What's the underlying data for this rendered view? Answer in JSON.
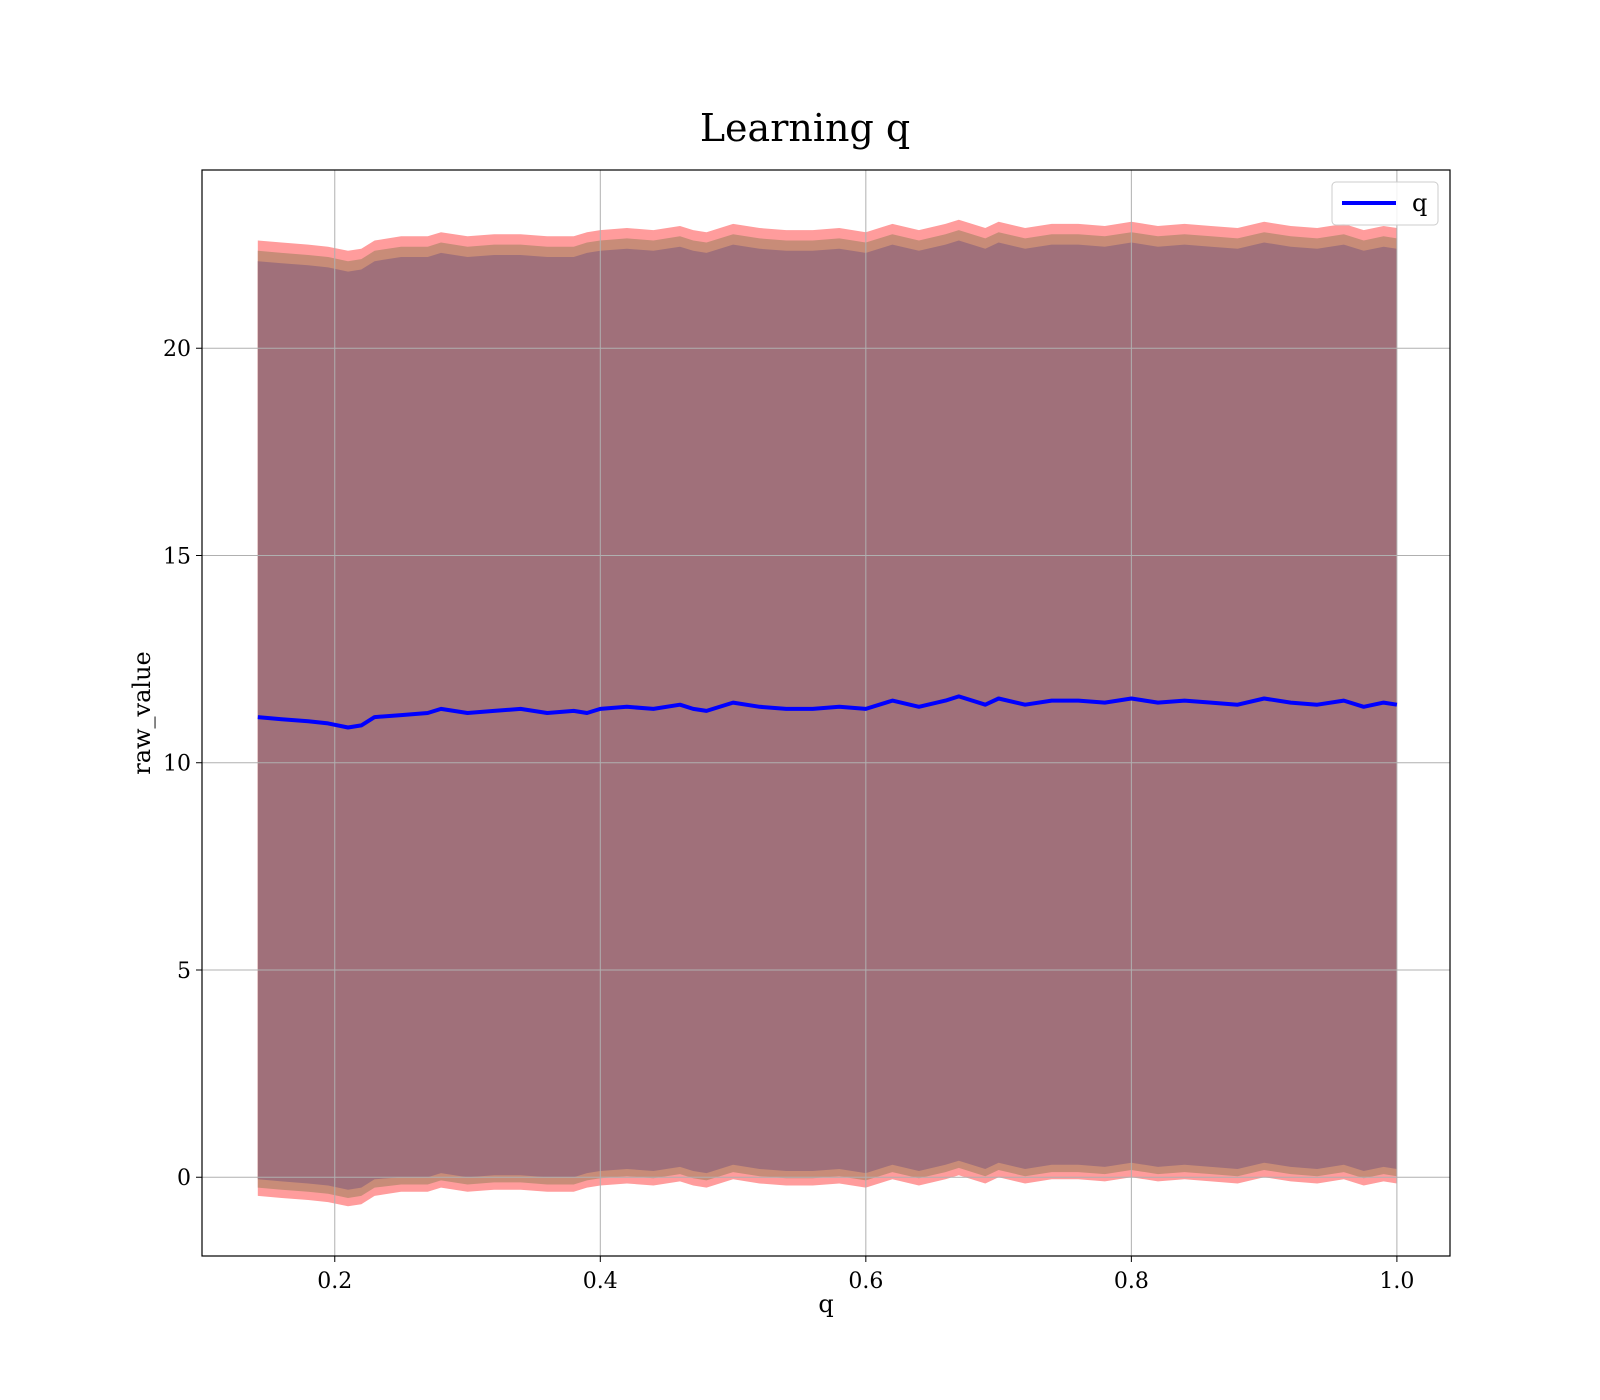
{
  "chart_data": {
    "type": "line",
    "title": "Learning q",
    "xlabel": "q",
    "ylabel": "raw_value",
    "xlim": [
      0.1,
      1.04
    ],
    "ylim": [
      -1.9,
      24.3
    ],
    "xticks": [
      0.2,
      0.4,
      0.6,
      0.8,
      1.0
    ],
    "xtick_labels": [
      "0.2",
      "0.4",
      "0.6",
      "0.8",
      "1.0"
    ],
    "yticks": [
      0,
      5,
      10,
      15,
      20
    ],
    "ytick_labels": [
      "0",
      "5",
      "10",
      "15",
      "20"
    ],
    "grid": true,
    "legend": {
      "position": "top-right",
      "entries": [
        "q"
      ]
    },
    "colors": {
      "line": "#0000ff",
      "outer_band": "#ff9c9c",
      "mid_band": "#c88c78",
      "inner_band": "#a0707a",
      "grid": "#b0b0b0"
    },
    "series": [
      {
        "name": "q",
        "x": [
          0.142,
          0.16,
          0.18,
          0.195,
          0.21,
          0.22,
          0.23,
          0.25,
          0.27,
          0.28,
          0.3,
          0.32,
          0.34,
          0.36,
          0.38,
          0.39,
          0.4,
          0.42,
          0.44,
          0.46,
          0.47,
          0.48,
          0.5,
          0.52,
          0.54,
          0.56,
          0.58,
          0.6,
          0.62,
          0.64,
          0.66,
          0.67,
          0.69,
          0.7,
          0.72,
          0.74,
          0.76,
          0.78,
          0.8,
          0.82,
          0.84,
          0.86,
          0.88,
          0.9,
          0.92,
          0.94,
          0.96,
          0.975,
          0.99,
          1.0
        ],
        "y": [
          11.1,
          11.05,
          11.0,
          10.95,
          10.85,
          10.9,
          11.1,
          11.15,
          11.2,
          11.3,
          11.2,
          11.25,
          11.3,
          11.2,
          11.25,
          11.2,
          11.3,
          11.35,
          11.3,
          11.4,
          11.3,
          11.25,
          11.45,
          11.35,
          11.3,
          11.3,
          11.35,
          11.3,
          11.5,
          11.35,
          11.5,
          11.6,
          11.4,
          11.55,
          11.4,
          11.5,
          11.5,
          11.45,
          11.55,
          11.45,
          11.5,
          11.45,
          11.4,
          11.55,
          11.45,
          11.4,
          11.5,
          11.35,
          11.45,
          11.4
        ],
        "upper_outer": [
          22.6,
          22.55,
          22.5,
          22.45,
          22.35,
          22.4,
          22.6,
          22.7,
          22.7,
          22.8,
          22.7,
          22.75,
          22.75,
          22.7,
          22.7,
          22.8,
          22.85,
          22.9,
          22.85,
          22.95,
          22.85,
          22.8,
          23.0,
          22.9,
          22.85,
          22.85,
          22.9,
          22.8,
          23.0,
          22.85,
          23.0,
          23.1,
          22.9,
          23.05,
          22.9,
          23.0,
          23.0,
          22.95,
          23.05,
          22.95,
          23.0,
          22.95,
          22.9,
          23.05,
          22.95,
          22.9,
          23.0,
          22.85,
          22.95,
          22.9
        ],
        "upper_inner": [
          22.1,
          22.05,
          22.0,
          21.95,
          21.85,
          21.9,
          22.1,
          22.2,
          22.2,
          22.3,
          22.2,
          22.25,
          22.25,
          22.2,
          22.2,
          22.3,
          22.35,
          22.4,
          22.35,
          22.45,
          22.35,
          22.3,
          22.5,
          22.4,
          22.35,
          22.35,
          22.4,
          22.3,
          22.5,
          22.35,
          22.5,
          22.6,
          22.4,
          22.55,
          22.4,
          22.5,
          22.5,
          22.45,
          22.55,
          22.45,
          22.5,
          22.45,
          22.4,
          22.55,
          22.45,
          22.4,
          22.5,
          22.35,
          22.45,
          22.4
        ],
        "lower_inner": [
          -0.05,
          -0.1,
          -0.15,
          -0.2,
          -0.3,
          -0.25,
          -0.05,
          0.0,
          0.0,
          0.1,
          0.0,
          0.05,
          0.05,
          0.0,
          0.0,
          0.1,
          0.15,
          0.2,
          0.15,
          0.25,
          0.15,
          0.1,
          0.3,
          0.2,
          0.15,
          0.15,
          0.2,
          0.1,
          0.3,
          0.15,
          0.3,
          0.4,
          0.2,
          0.35,
          0.2,
          0.3,
          0.3,
          0.25,
          0.35,
          0.25,
          0.3,
          0.25,
          0.2,
          0.35,
          0.25,
          0.2,
          0.3,
          0.15,
          0.25,
          0.2
        ],
        "lower_outer": [
          -0.45,
          -0.5,
          -0.55,
          -0.6,
          -0.7,
          -0.65,
          -0.45,
          -0.35,
          -0.35,
          -0.25,
          -0.35,
          -0.3,
          -0.3,
          -0.35,
          -0.35,
          -0.25,
          -0.2,
          -0.15,
          -0.2,
          -0.1,
          -0.2,
          -0.25,
          -0.05,
          -0.15,
          -0.2,
          -0.2,
          -0.15,
          -0.25,
          -0.05,
          -0.2,
          -0.05,
          0.05,
          -0.15,
          0.0,
          -0.15,
          -0.05,
          -0.05,
          -0.1,
          0.0,
          -0.1,
          -0.05,
          -0.1,
          -0.15,
          0.0,
          -0.1,
          -0.15,
          -0.05,
          -0.2,
          -0.1,
          -0.15
        ]
      }
    ]
  }
}
